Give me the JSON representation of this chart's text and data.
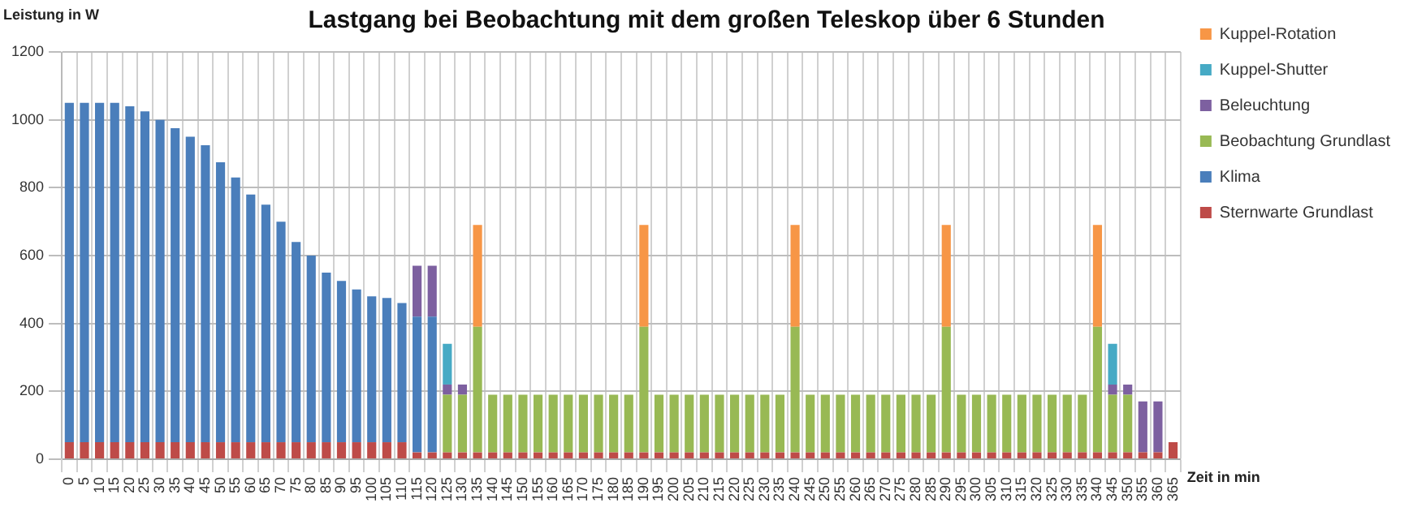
{
  "chart_data": {
    "type": "bar",
    "stacked": true,
    "title": "Lastgang bei Beobachtung mit dem großen Teleskop über 6 Stunden",
    "ylabel": "Leistung in W",
    "xlabel": "Zeit in min",
    "categories": [
      "0",
      "5",
      "10",
      "15",
      "20",
      "25",
      "30",
      "35",
      "40",
      "45",
      "50",
      "55",
      "60",
      "65",
      "70",
      "75",
      "80",
      "85",
      "90",
      "95",
      "100",
      "105",
      "110",
      "115",
      "120",
      "125",
      "130",
      "135",
      "140",
      "145",
      "150",
      "155",
      "160",
      "165",
      "170",
      "175",
      "180",
      "185",
      "190",
      "195",
      "200",
      "205",
      "210",
      "215",
      "220",
      "225",
      "230",
      "235",
      "240",
      "245",
      "250",
      "255",
      "260",
      "265",
      "270",
      "275",
      "280",
      "285",
      "290",
      "295",
      "300",
      "305",
      "310",
      "315",
      "320",
      "325",
      "330",
      "335",
      "340",
      "345",
      "350",
      "355",
      "360",
      "365"
    ],
    "series": [
      {
        "name": "Sternwarte Grundlast",
        "color": "#be4b48",
        "values": [
          50,
          50,
          50,
          50,
          50,
          50,
          50,
          50,
          50,
          50,
          50,
          50,
          50,
          50,
          50,
          50,
          50,
          50,
          50,
          50,
          50,
          50,
          50,
          20,
          20,
          20,
          20,
          20,
          20,
          20,
          20,
          20,
          20,
          20,
          20,
          20,
          20,
          20,
          20,
          20,
          20,
          20,
          20,
          20,
          20,
          20,
          20,
          20,
          20,
          20,
          20,
          20,
          20,
          20,
          20,
          20,
          20,
          20,
          20,
          20,
          20,
          20,
          20,
          20,
          20,
          20,
          20,
          20,
          20,
          20,
          20,
          20,
          20,
          50
        ]
      },
      {
        "name": "Klima",
        "color": "#4a7ebb",
        "values": [
          1000,
          1000,
          1000,
          1000,
          990,
          975,
          950,
          925,
          900,
          875,
          825,
          780,
          730,
          700,
          650,
          590,
          550,
          500,
          475,
          450,
          430,
          425,
          410,
          400,
          400,
          null,
          null,
          null,
          null,
          null,
          null,
          null,
          null,
          null,
          null,
          null,
          null,
          null,
          null,
          null,
          null,
          null,
          null,
          null,
          null,
          null,
          null,
          null,
          null,
          null,
          null,
          null,
          null,
          null,
          null,
          null,
          null,
          null,
          null,
          null,
          null,
          null,
          null,
          null,
          null,
          null,
          null,
          null,
          null,
          null,
          null,
          null,
          null,
          null
        ]
      },
      {
        "name": "Beobachtung Grundlast",
        "color": "#98b954",
        "values": [
          null,
          null,
          null,
          null,
          null,
          null,
          null,
          null,
          null,
          null,
          null,
          null,
          null,
          null,
          null,
          null,
          null,
          null,
          null,
          null,
          null,
          null,
          null,
          null,
          null,
          170,
          170,
          370,
          170,
          170,
          170,
          170,
          170,
          170,
          170,
          170,
          170,
          170,
          370,
          170,
          170,
          170,
          170,
          170,
          170,
          170,
          170,
          170,
          370,
          170,
          170,
          170,
          170,
          170,
          170,
          170,
          170,
          170,
          370,
          170,
          170,
          170,
          170,
          170,
          170,
          170,
          170,
          170,
          370,
          170,
          170,
          null,
          null,
          null
        ]
      },
      {
        "name": "Beleuchtung",
        "color": "#7d60a0",
        "values": [
          null,
          null,
          null,
          null,
          null,
          null,
          null,
          null,
          null,
          null,
          null,
          null,
          null,
          null,
          null,
          null,
          null,
          null,
          null,
          null,
          null,
          null,
          null,
          150,
          150,
          30,
          30,
          null,
          null,
          null,
          null,
          null,
          null,
          null,
          null,
          null,
          null,
          null,
          null,
          null,
          null,
          null,
          null,
          null,
          null,
          null,
          null,
          null,
          null,
          null,
          null,
          null,
          null,
          null,
          null,
          null,
          null,
          null,
          null,
          null,
          null,
          null,
          null,
          null,
          null,
          null,
          null,
          null,
          null,
          30,
          30,
          150,
          150,
          null
        ]
      },
      {
        "name": "Kuppel-Shutter",
        "color": "#46aac5",
        "values": [
          null,
          null,
          null,
          null,
          null,
          null,
          null,
          null,
          null,
          null,
          null,
          null,
          null,
          null,
          null,
          null,
          null,
          null,
          null,
          null,
          null,
          null,
          null,
          null,
          null,
          120,
          null,
          null,
          null,
          null,
          null,
          null,
          null,
          null,
          null,
          null,
          null,
          null,
          null,
          null,
          null,
          null,
          null,
          null,
          null,
          null,
          null,
          null,
          null,
          null,
          null,
          null,
          null,
          null,
          null,
          null,
          null,
          null,
          null,
          null,
          null,
          null,
          null,
          null,
          null,
          null,
          null,
          null,
          null,
          120,
          null,
          null,
          null,
          null
        ]
      },
      {
        "name": "Kuppel-Rotation",
        "color": "#f79646",
        "values": [
          null,
          null,
          null,
          null,
          null,
          null,
          null,
          null,
          null,
          null,
          null,
          null,
          null,
          null,
          null,
          null,
          null,
          null,
          null,
          null,
          null,
          null,
          null,
          null,
          null,
          null,
          null,
          300,
          null,
          null,
          null,
          null,
          null,
          null,
          null,
          null,
          null,
          null,
          300,
          null,
          null,
          null,
          null,
          null,
          null,
          null,
          null,
          null,
          300,
          null,
          null,
          null,
          null,
          null,
          null,
          null,
          null,
          null,
          300,
          null,
          null,
          null,
          null,
          null,
          null,
          null,
          null,
          null,
          300,
          null,
          null,
          null,
          null,
          null
        ]
      }
    ],
    "ylim": [
      0,
      1200
    ],
    "yticks": [
      0,
      200,
      400,
      600,
      800,
      1000,
      1200
    ],
    "grid": true,
    "legend": "right"
  }
}
